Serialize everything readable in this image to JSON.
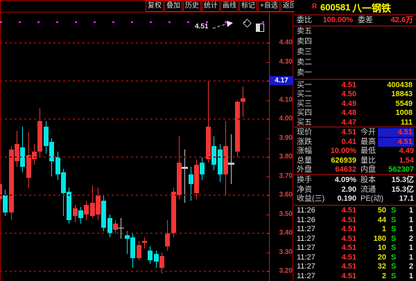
{
  "colors": {
    "frame_red": "#b40000",
    "value_red": "#ff3232",
    "yellow": "#e8e800",
    "green": "#00dd00",
    "candle_up": "#f23535",
    "candle_down": "#00e6e6",
    "candle_doji": "#c9c9c9",
    "limit_magenta": "#ff2fff",
    "tag_blue": "#1a1ac8"
  },
  "toolbar": {
    "buttons": [
      "复权",
      "叠加",
      "历史",
      "统计",
      "画线",
      "标记",
      "+自选",
      "返回"
    ]
  },
  "chart": {
    "annotation_label": "4.51",
    "current_price_tag": "4.17",
    "icons": [
      "diamond-icon",
      "panel-icon"
    ]
  },
  "chart_data": {
    "type": "candlestick",
    "y_ticks": [
      "4.40",
      "4.30",
      "4.20",
      "4.10",
      "4.00",
      "3.90",
      "3.80",
      "3.70",
      "3.60",
      "3.50",
      "3.40",
      "3.30",
      "3.20"
    ],
    "grid_levels": [
      4.4,
      4.2,
      4.0,
      3.8,
      3.6,
      3.4,
      3.2
    ],
    "ylim": [
      3.15,
      4.56
    ],
    "limit_up_price": 4.51,
    "last_price": 4.17,
    "candles": [
      {
        "o": 3.58,
        "c": 3.66,
        "h": 3.68,
        "l": 3.56
      },
      {
        "o": 3.6,
        "c": 3.51,
        "h": 3.63,
        "l": 3.49
      },
      {
        "o": 3.51,
        "c": 3.84,
        "h": 3.86,
        "l": 3.47
      },
      {
        "o": 3.78,
        "c": 3.87,
        "h": 3.94,
        "l": 3.75
      },
      {
        "o": 3.85,
        "c": 3.75,
        "h": 3.96,
        "l": 3.72
      },
      {
        "o": 3.69,
        "c": 3.81,
        "h": 3.93,
        "l": 3.64
      },
      {
        "o": 3.79,
        "c": 3.83,
        "h": 3.87,
        "l": 3.76
      },
      {
        "o": 3.83,
        "c": 3.99,
        "h": 4.06,
        "l": 3.8
      },
      {
        "o": 3.96,
        "c": 3.86,
        "h": 3.99,
        "l": 3.82
      },
      {
        "o": 3.88,
        "c": 3.78,
        "h": 3.9,
        "l": 3.7
      },
      {
        "o": 3.8,
        "c": 3.71,
        "h": 3.83,
        "l": 3.68
      },
      {
        "o": 3.72,
        "c": 3.61,
        "h": 3.74,
        "l": 3.49
      },
      {
        "o": 3.62,
        "c": 3.47,
        "h": 3.64,
        "l": 3.45
      },
      {
        "o": 3.49,
        "c": 3.53,
        "h": 3.55,
        "l": 3.46
      },
      {
        "o": 3.52,
        "c": 3.48,
        "h": 3.54,
        "l": 3.45
      },
      {
        "o": 3.5,
        "c": 3.55,
        "h": 3.57,
        "l": 3.47
      },
      {
        "o": 3.49,
        "c": 3.56,
        "h": 3.65,
        "l": 3.48
      },
      {
        "o": 3.5,
        "c": 3.6,
        "h": 3.64,
        "l": 3.47
      },
      {
        "o": 3.57,
        "c": 3.43,
        "h": 3.6,
        "l": 3.41
      },
      {
        "o": 3.48,
        "c": 3.4,
        "h": 3.5,
        "l": 3.38
      },
      {
        "o": 3.42,
        "c": 3.45,
        "h": 3.47,
        "l": 3.4
      },
      {
        "o": 3.43,
        "c": 3.43,
        "h": 3.48,
        "l": 3.37,
        "doji": true
      },
      {
        "o": 3.39,
        "c": 3.37,
        "h": 3.41,
        "l": 3.29
      },
      {
        "o": 3.38,
        "c": 3.27,
        "h": 3.4,
        "l": 3.22
      },
      {
        "o": 3.27,
        "c": 3.34,
        "h": 3.36,
        "l": 3.26
      },
      {
        "o": 3.35,
        "c": 3.36,
        "h": 3.38,
        "l": 3.32
      },
      {
        "o": 3.31,
        "c": 3.26,
        "h": 3.33,
        "l": 3.24
      },
      {
        "o": 3.29,
        "c": 3.25,
        "h": 3.31,
        "l": 3.22
      },
      {
        "o": 3.22,
        "c": 3.28,
        "h": 3.3,
        "l": 3.19
      },
      {
        "o": 3.33,
        "c": 3.4,
        "h": 3.47,
        "l": 3.31
      },
      {
        "o": 3.4,
        "c": 3.62,
        "h": 3.64,
        "l": 3.38
      },
      {
        "o": 3.6,
        "c": 3.77,
        "h": 3.91,
        "l": 3.58
      },
      {
        "o": 3.74,
        "c": 3.75,
        "h": 3.84,
        "l": 3.56,
        "doji": true
      },
      {
        "o": 3.71,
        "c": 3.66,
        "h": 3.75,
        "l": 3.57
      },
      {
        "o": 3.61,
        "c": 3.76,
        "h": 3.79,
        "l": 3.58
      },
      {
        "o": 3.77,
        "c": 3.71,
        "h": 3.8,
        "l": 3.68
      },
      {
        "o": 3.79,
        "c": 3.96,
        "h": 4.2,
        "l": 3.77
      },
      {
        "o": 3.86,
        "c": 3.76,
        "h": 3.91,
        "l": 3.73
      },
      {
        "o": 3.84,
        "c": 3.71,
        "h": 3.87,
        "l": 3.67
      },
      {
        "o": 3.71,
        "c": 3.86,
        "h": 3.99,
        "l": 3.6
      },
      {
        "o": 3.76,
        "c": 3.77,
        "h": 3.92,
        "l": 3.66,
        "doji": true
      },
      {
        "o": 3.83,
        "c": 4.09,
        "h": 4.1,
        "l": 3.8
      },
      {
        "o": 4.09,
        "c": 4.11,
        "h": 4.17,
        "l": 4.01
      }
    ]
  },
  "quote": {
    "header": {
      "flag": "R",
      "code": "600581",
      "name": "八一钢铁"
    },
    "summary": [
      {
        "label": "委比",
        "value": "100.00%",
        "vc": "red"
      },
      {
        "label": "委差",
        "value": "42.6万",
        "vc": "red"
      }
    ],
    "sell_levels": [
      {
        "label": "卖五"
      },
      {
        "label": "卖四"
      },
      {
        "label": "卖三"
      },
      {
        "label": "卖二"
      },
      {
        "label": "卖一"
      }
    ],
    "buy_levels": [
      {
        "label": "买一",
        "price": "4.51",
        "volume": "400438"
      },
      {
        "label": "买二",
        "price": "4.50",
        "volume": "18843"
      },
      {
        "label": "买三",
        "price": "4.49",
        "volume": "5549"
      },
      {
        "label": "买四",
        "price": "4.48",
        "volume": "1008"
      },
      {
        "label": "买五",
        "price": "4.47",
        "volume": "111"
      }
    ],
    "stats": [
      [
        {
          "label": "现价",
          "value": "4.51",
          "vc": "red"
        },
        {
          "label": "今开",
          "value": "4.51",
          "vc": "red",
          "boxed": true
        }
      ],
      [
        {
          "label": "涨跌",
          "value": "0.41",
          "vc": "red"
        },
        {
          "label": "最高",
          "value": "4.51",
          "vc": "red",
          "boxed": true
        }
      ],
      [
        {
          "label": "涨幅",
          "value": "10.00%",
          "vc": "red"
        },
        {
          "label": "最低",
          "value": "4.49",
          "vc": "red"
        }
      ],
      [
        {
          "label": "总量",
          "value": "626939",
          "vc": "yellow"
        },
        {
          "label": "量比",
          "value": "1.54",
          "vc": "red"
        }
      ],
      [
        {
          "label": "外盘",
          "value": "64632",
          "vc": "red"
        },
        {
          "label": "内盘",
          "value": "562307",
          "vc": "green"
        }
      ]
    ],
    "fundamentals": [
      [
        {
          "label": "换手",
          "value": "4.09%",
          "vc": "white"
        },
        {
          "label": "股本",
          "value": "15.3亿",
          "vc": "white"
        }
      ],
      [
        {
          "label": "净资",
          "value": "2.90",
          "vc": "white"
        },
        {
          "label": "流通",
          "value": "15.3亿",
          "vc": "white"
        }
      ],
      [
        {
          "label": "收益(三)",
          "value": "0.190",
          "vc": "white"
        },
        {
          "label": "PE(动)",
          "value": "17.1",
          "vc": "white"
        }
      ]
    ],
    "ticks": [
      {
        "time": "11:26",
        "price": "4.51",
        "volume": "50",
        "flag": "S",
        "count": "1"
      },
      {
        "time": "11:26",
        "price": "4.51",
        "volume": "44",
        "flag": "S",
        "count": "1"
      },
      {
        "time": "11:27",
        "price": "4.51",
        "volume": "1",
        "flag": "S",
        "count": "1"
      },
      {
        "time": "11:27",
        "price": "4.51",
        "volume": "180",
        "flag": "S",
        "count": "2"
      },
      {
        "time": "11:27",
        "price": "4.51",
        "volume": "10",
        "flag": "S",
        "count": "1"
      },
      {
        "time": "11:27",
        "price": "4.51",
        "volume": "20",
        "flag": "S",
        "count": "1"
      },
      {
        "time": "11:27",
        "price": "4.51",
        "volume": "32",
        "flag": "S",
        "count": "2"
      },
      {
        "time": "11:27",
        "price": "4.51",
        "volume": "2",
        "flag": "S",
        "count": "1"
      }
    ]
  }
}
